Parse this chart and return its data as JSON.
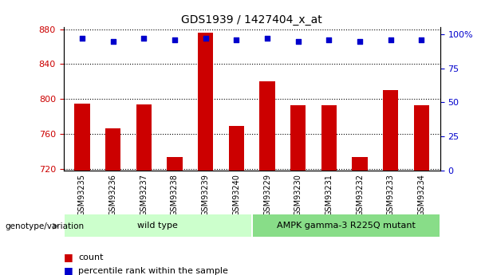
{
  "title": "GDS1939 / 1427404_x_at",
  "samples": [
    "GSM93235",
    "GSM93236",
    "GSM93237",
    "GSM93238",
    "GSM93239",
    "GSM93240",
    "GSM93229",
    "GSM93230",
    "GSM93231",
    "GSM93232",
    "GSM93233",
    "GSM93234"
  ],
  "counts": [
    795,
    766,
    794,
    733,
    876,
    769,
    820,
    793,
    793,
    733,
    810,
    793
  ],
  "percentiles": [
    97,
    95,
    97,
    96,
    97,
    96,
    97,
    95,
    96,
    95,
    96,
    96
  ],
  "ylim_left": [
    718,
    882
  ],
  "yticks_left": [
    720,
    760,
    800,
    840,
    880
  ],
  "ylim_right": [
    0,
    105
  ],
  "yticks_right": [
    0,
    25,
    50,
    75,
    100
  ],
  "ytick_right_labels": [
    "0",
    "25",
    "50",
    "75",
    "100%"
  ],
  "bar_color": "#cc0000",
  "dot_color": "#0000cc",
  "grid_color": "#000000",
  "label_color_left": "#cc0000",
  "label_color_right": "#0000cc",
  "bg_color_plot": "#ffffff",
  "tick_bg_color": "#c8c8c8",
  "group1_label": "wild type",
  "group2_label": "AMPK gamma-3 R225Q mutant",
  "group1_color": "#ccffcc",
  "group2_color": "#88dd88",
  "genotype_label": "genotype/variation",
  "legend_count_label": "count",
  "legend_pct_label": "percentile rank within the sample",
  "bar_width": 0.5
}
